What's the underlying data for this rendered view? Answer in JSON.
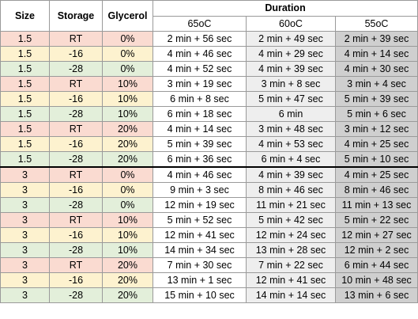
{
  "headers": {
    "size": "Size",
    "storage": "Storage",
    "glycerol": "Glycerol",
    "duration": "Duration",
    "temps": [
      "65oC",
      "60oC",
      "55oC"
    ]
  },
  "rows": [
    {
      "size": "1.5",
      "storage": "RT",
      "glycerol": "0%",
      "t65": "2 min + 56 sec",
      "t60": "2 min + 49 sec",
      "t55": "2 min + 39 sec"
    },
    {
      "size": "1.5",
      "storage": "-16",
      "glycerol": "0%",
      "t65": "4 min + 46 sec",
      "t60": "4 min + 29 sec",
      "t55": "4 min + 14 sec"
    },
    {
      "size": "1.5",
      "storage": "-28",
      "glycerol": "0%",
      "t65": "4 min + 52 sec",
      "t60": "4 min + 39 sec",
      "t55": "4 min + 30 sec"
    },
    {
      "size": "1.5",
      "storage": "RT",
      "glycerol": "10%",
      "t65": "3 min + 19 sec",
      "t60": "3 min + 8 sec",
      "t55": "3 min + 4 sec"
    },
    {
      "size": "1.5",
      "storage": "-16",
      "glycerol": "10%",
      "t65": "6 min + 8 sec",
      "t60": "5 min + 47 sec",
      "t55": "5 min + 39 sec"
    },
    {
      "size": "1.5",
      "storage": "-28",
      "glycerol": "10%",
      "t65": "6 min + 18 sec",
      "t60": "6 min",
      "t55": "5 min + 6 sec"
    },
    {
      "size": "1.5",
      "storage": "RT",
      "glycerol": "20%",
      "t65": "4 min + 14 sec",
      "t60": "3 min + 48 sec",
      "t55": "3 min + 12 sec"
    },
    {
      "size": "1.5",
      "storage": "-16",
      "glycerol": "20%",
      "t65": "5 min + 39 sec",
      "t60": "4 min + 53 sec",
      "t55": "4 min + 25 sec"
    },
    {
      "size": "1.5",
      "storage": "-28",
      "glycerol": "20%",
      "t65": "6 min + 36 sec",
      "t60": "6 min + 4 sec",
      "t55": "5 min + 10 sec"
    },
    {
      "size": "3",
      "storage": "RT",
      "glycerol": "0%",
      "t65": "4 min + 46 sec",
      "t60": "4 min + 39 sec",
      "t55": "4 min + 25 sec"
    },
    {
      "size": "3",
      "storage": "-16",
      "glycerol": "0%",
      "t65": "9 min + 3 sec",
      "t60": "8 min + 46 sec",
      "t55": "8 min + 46 sec"
    },
    {
      "size": "3",
      "storage": "-28",
      "glycerol": "0%",
      "t65": "12 min + 19 sec",
      "t60": "11 min + 21 sec",
      "t55": "11 min + 13 sec"
    },
    {
      "size": "3",
      "storage": "RT",
      "glycerol": "10%",
      "t65": "5 min + 52 sec",
      "t60": "5 min + 42 sec",
      "t55": "5 min + 22 sec"
    },
    {
      "size": "3",
      "storage": "-16",
      "glycerol": "10%",
      "t65": "12 min + 41 sec",
      "t60": "12 min + 24 sec",
      "t55": "12 min + 27 sec"
    },
    {
      "size": "3",
      "storage": "-28",
      "glycerol": "10%",
      "t65": "14 min + 34 sec",
      "t60": "13 min + 28 sec",
      "t55": "12 min + 2 sec"
    },
    {
      "size": "3",
      "storage": "RT",
      "glycerol": "20%",
      "t65": "7 min + 30 sec",
      "t60": "7 min + 22 sec",
      "t55": "6 min + 44 sec"
    },
    {
      "size": "3",
      "storage": "-16",
      "glycerol": "20%",
      "t65": "13 min + 1 sec",
      "t60": "12 min + 41 sec",
      "t55": "10 min + 48 sec"
    },
    {
      "size": "3",
      "storage": "-28",
      "glycerol": "20%",
      "t65": "15 min + 10 sec",
      "t60": "14 min + 14 sec",
      "t55": "13 min + 6 sec"
    }
  ],
  "colors": {
    "rt_row": "#fadbd1",
    "minus16_row": "#fdf2cf",
    "minus28_row": "#e3efda",
    "col_60": "#eeeeee",
    "col_55": "#cfcfcf",
    "group_separator": "#000000"
  }
}
